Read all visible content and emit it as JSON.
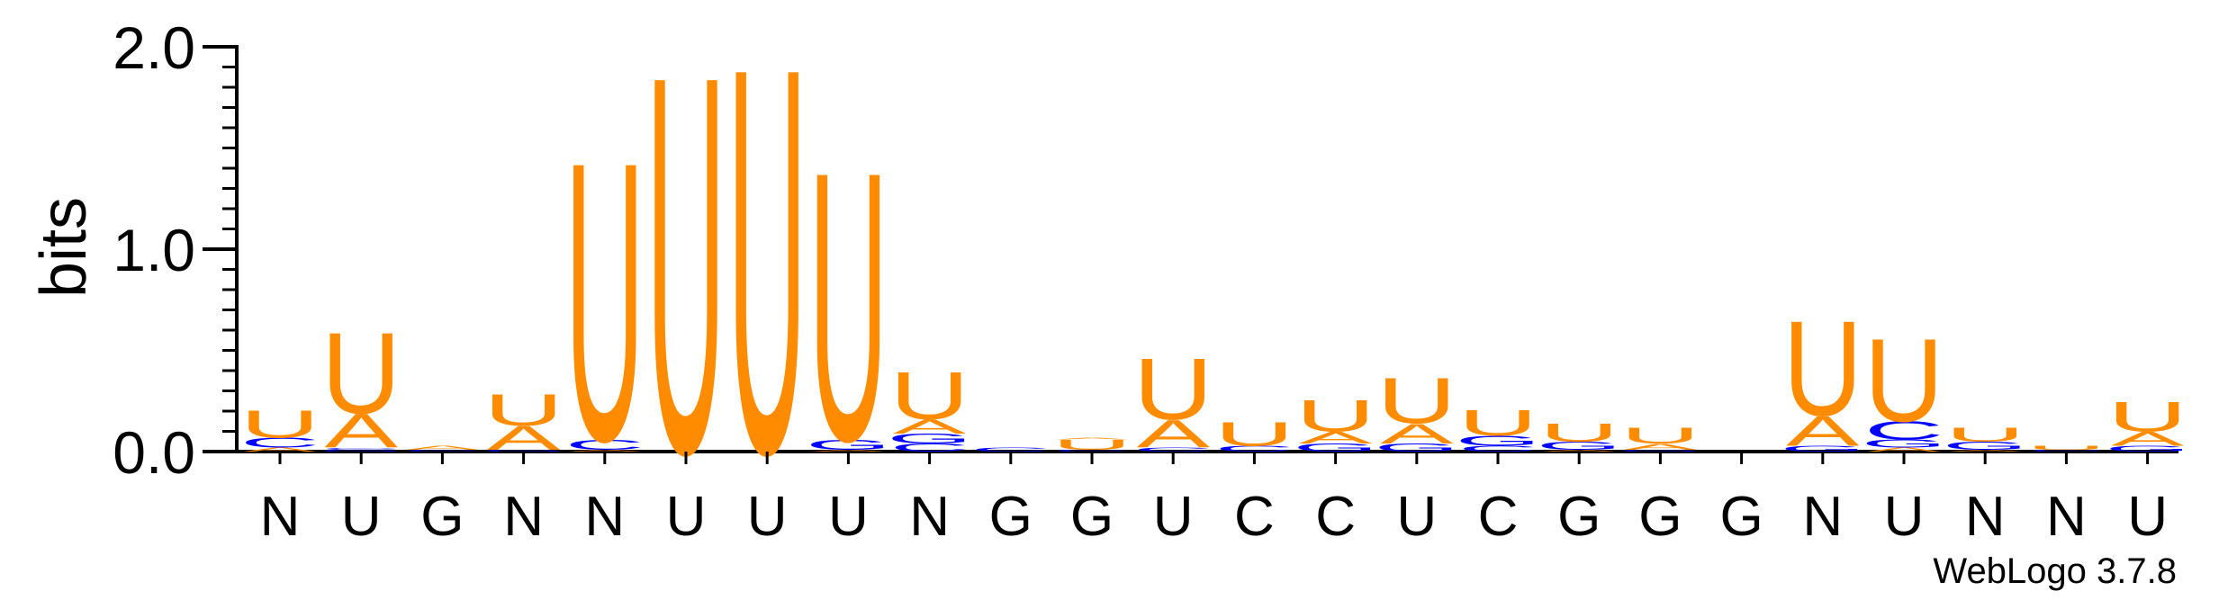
{
  "chart_data": {
    "type": "sequence-logo",
    "ylabel": "bits",
    "ylim": [
      0,
      2.0
    ],
    "yticks": [
      {
        "value": 0.0,
        "label": "0.0"
      },
      {
        "value": 1.0,
        "label": "1.0"
      },
      {
        "value": 2.0,
        "label": "2.0"
      }
    ],
    "watermark": "WebLogo 3.7.8",
    "colors": {
      "U": "#ff8c00",
      "A": "#ff8c00",
      "C": "#0000ff",
      "G": "#0000ff"
    },
    "positions": [
      {
        "label": "N",
        "stack": [
          {
            "letter": "A",
            "bits": 0.02
          },
          {
            "letter": "C",
            "bits": 0.05
          },
          {
            "letter": "U",
            "bits": 0.14
          }
        ]
      },
      {
        "label": "U",
        "stack": [
          {
            "letter": "G",
            "bits": 0.01
          },
          {
            "letter": "C",
            "bits": 0.01
          },
          {
            "letter": "A",
            "bits": 0.17
          },
          {
            "letter": "U",
            "bits": 0.41
          }
        ]
      },
      {
        "label": "G",
        "stack": [
          {
            "letter": "C",
            "bits": 0.01
          },
          {
            "letter": "A",
            "bits": 0.02
          }
        ]
      },
      {
        "label": "N",
        "stack": [
          {
            "letter": "G",
            "bits": 0.01
          },
          {
            "letter": "A",
            "bits": 0.12
          },
          {
            "letter": "U",
            "bits": 0.16
          }
        ]
      },
      {
        "label": "N",
        "stack": [
          {
            "letter": "A",
            "bits": 0.01
          },
          {
            "letter": "C",
            "bits": 0.05
          },
          {
            "letter": "U",
            "bits": 1.41
          }
        ]
      },
      {
        "label": "U",
        "stack": [
          {
            "letter": "U",
            "bits": 1.91
          }
        ]
      },
      {
        "label": "U",
        "stack": [
          {
            "letter": "U",
            "bits": 1.95
          }
        ]
      },
      {
        "label": "U",
        "stack": [
          {
            "letter": "A",
            "bits": 0.01
          },
          {
            "letter": "G",
            "bits": 0.05
          },
          {
            "letter": "U",
            "bits": 1.36
          }
        ]
      },
      {
        "label": "N",
        "stack": [
          {
            "letter": "C",
            "bits": 0.04
          },
          {
            "letter": "G",
            "bits": 0.05
          },
          {
            "letter": "A",
            "bits": 0.07
          },
          {
            "letter": "U",
            "bits": 0.24
          }
        ]
      },
      {
        "label": "G",
        "stack": [
          {
            "letter": "C",
            "bits": 0.02
          }
        ]
      },
      {
        "label": "G",
        "stack": [
          {
            "letter": "C",
            "bits": 0.01
          },
          {
            "letter": "U",
            "bits": 0.05
          },
          {
            "letter": "A",
            "bits": 0.01
          }
        ]
      },
      {
        "label": "U",
        "stack": [
          {
            "letter": "C",
            "bits": 0.02
          },
          {
            "letter": "A",
            "bits": 0.14
          },
          {
            "letter": "U",
            "bits": 0.31
          }
        ]
      },
      {
        "label": "C",
        "stack": [
          {
            "letter": "C",
            "bits": 0.03
          },
          {
            "letter": "U",
            "bits": 0.12
          }
        ]
      },
      {
        "label": "C",
        "stack": [
          {
            "letter": "G",
            "bits": 0.04
          },
          {
            "letter": "A",
            "bits": 0.06
          },
          {
            "letter": "U",
            "bits": 0.16
          }
        ]
      },
      {
        "label": "U",
        "stack": [
          {
            "letter": "G",
            "bits": 0.04
          },
          {
            "letter": "A",
            "bits": 0.1
          },
          {
            "letter": "U",
            "bits": 0.23
          }
        ]
      },
      {
        "label": "C",
        "stack": [
          {
            "letter": "C",
            "bits": 0.03
          },
          {
            "letter": "G",
            "bits": 0.05
          },
          {
            "letter": "U",
            "bits": 0.13
          }
        ]
      },
      {
        "label": "G",
        "stack": [
          {
            "letter": "A",
            "bits": 0.01
          },
          {
            "letter": "G",
            "bits": 0.04
          },
          {
            "letter": "U",
            "bits": 0.09
          }
        ]
      },
      {
        "label": "G",
        "stack": [
          {
            "letter": "G",
            "bits": 0.01
          },
          {
            "letter": "A",
            "bits": 0.03
          },
          {
            "letter": "U",
            "bits": 0.08
          }
        ]
      },
      {
        "label": "G",
        "stack": []
      },
      {
        "label": "N",
        "stack": [
          {
            "letter": "G",
            "bits": 0.03
          },
          {
            "letter": "A",
            "bits": 0.15
          },
          {
            "letter": "U",
            "bits": 0.48
          }
        ]
      },
      {
        "label": "U",
        "stack": [
          {
            "letter": "A",
            "bits": 0.02
          },
          {
            "letter": "G",
            "bits": 0.04
          },
          {
            "letter": "C",
            "bits": 0.09
          },
          {
            "letter": "U",
            "bits": 0.42
          }
        ]
      },
      {
        "label": "N",
        "stack": [
          {
            "letter": "A",
            "bits": 0.01
          },
          {
            "letter": "G",
            "bits": 0.04
          },
          {
            "letter": "U",
            "bits": 0.07
          }
        ]
      },
      {
        "label": "N",
        "stack": [
          {
            "letter": "C",
            "bits": 0.01
          },
          {
            "letter": "U",
            "bits": 0.02
          }
        ]
      },
      {
        "label": "U",
        "stack": [
          {
            "letter": "G",
            "bits": 0.03
          },
          {
            "letter": "A",
            "bits": 0.07
          },
          {
            "letter": "U",
            "bits": 0.15
          }
        ]
      }
    ]
  }
}
